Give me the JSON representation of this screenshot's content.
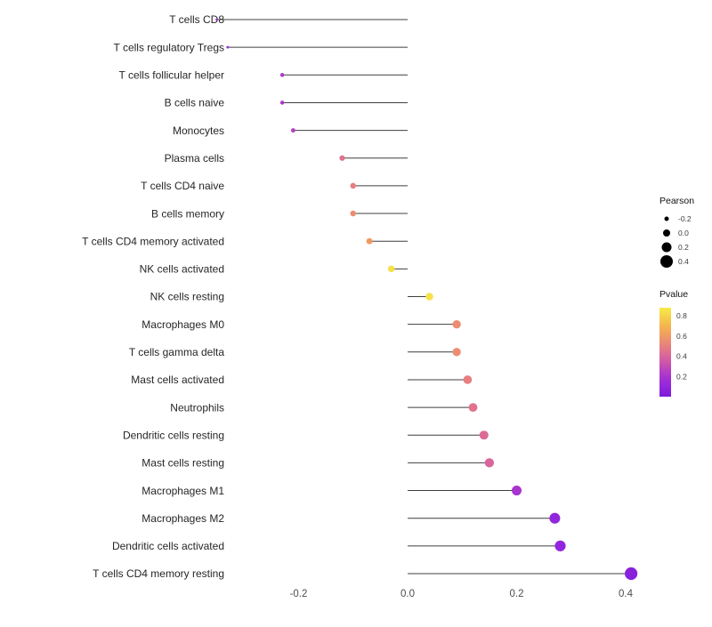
{
  "figure": {
    "background": "#ffffff"
  },
  "chart_data": {
    "type": "lollipop",
    "title": "",
    "xlabel": "",
    "ylabel": "",
    "grid": false,
    "legend_position": "right",
    "xlim": [
      -0.42,
      0.48
    ],
    "x_ticks": [
      -0.2,
      0.0,
      0.2,
      0.4
    ],
    "x_tick_labels": [
      "-0.2",
      "0.0",
      "0.2",
      "0.4"
    ],
    "points": [
      {
        "category": "T cells CD8",
        "pearson": -0.35,
        "pvalue": 0.15
      },
      {
        "category": "T cells regulatory  Tregs",
        "pearson": -0.33,
        "pvalue": 0.18
      },
      {
        "category": "T cells follicular helper",
        "pearson": -0.23,
        "pvalue": 0.22
      },
      {
        "category": "B cells naive",
        "pearson": -0.23,
        "pvalue": 0.22
      },
      {
        "category": "Monocytes",
        "pearson": -0.21,
        "pvalue": 0.25
      },
      {
        "category": "Plasma cells",
        "pearson": -0.12,
        "pvalue": 0.45
      },
      {
        "category": "T cells CD4 naive",
        "pearson": -0.1,
        "pvalue": 0.5
      },
      {
        "category": "B cells memory",
        "pearson": -0.1,
        "pvalue": 0.55
      },
      {
        "category": "T cells CD4 memory activated",
        "pearson": -0.07,
        "pvalue": 0.6
      },
      {
        "category": "NK cells activated",
        "pearson": -0.03,
        "pvalue": 0.85
      },
      {
        "category": "NK cells resting",
        "pearson": 0.04,
        "pvalue": 0.85
      },
      {
        "category": "Macrophages M0",
        "pearson": 0.09,
        "pvalue": 0.55
      },
      {
        "category": "T cells gamma delta",
        "pearson": 0.09,
        "pvalue": 0.55
      },
      {
        "category": "Mast cells activated",
        "pearson": 0.11,
        "pvalue": 0.5
      },
      {
        "category": "Neutrophils",
        "pearson": 0.12,
        "pvalue": 0.45
      },
      {
        "category": "Dendritic cells resting",
        "pearson": 0.14,
        "pvalue": 0.42
      },
      {
        "category": "Mast cells resting",
        "pearson": 0.15,
        "pvalue": 0.4
      },
      {
        "category": "Macrophages M1",
        "pearson": 0.2,
        "pvalue": 0.2
      },
      {
        "category": "Macrophages M2",
        "pearson": 0.27,
        "pvalue": 0.1
      },
      {
        "category": "Dendritic cells activated",
        "pearson": 0.28,
        "pvalue": 0.1
      },
      {
        "category": "T cells CD4 memory resting",
        "pearson": 0.41,
        "pvalue": 0.05
      }
    ],
    "size_legend": {
      "title": "Pearson",
      "tick_values": [
        -0.2,
        0.0,
        0.2,
        0.4
      ],
      "tick_labels": [
        "-0.2",
        "0.0",
        "0.2",
        "0.4"
      ]
    },
    "color_legend": {
      "title": "Pvalue",
      "tick_values": [
        0.8,
        0.6,
        0.4,
        0.2
      ],
      "tick_labels": [
        "0.8",
        "0.6",
        "0.4",
        "0.2"
      ],
      "domain": [
        0.0,
        0.88
      ]
    },
    "color_scale": {
      "stops": [
        {
          "t": 0.0,
          "color": "#7C1BD8"
        },
        {
          "t": 0.1,
          "color": "#9226DD"
        },
        {
          "t": 0.2,
          "color": "#A933CF"
        },
        {
          "t": 0.3,
          "color": "#C44BB5"
        },
        {
          "t": 0.4,
          "color": "#D9659B"
        },
        {
          "t": 0.5,
          "color": "#E77F80"
        },
        {
          "t": 0.6,
          "color": "#EF9A63"
        },
        {
          "t": 0.7,
          "color": "#F4B54F"
        },
        {
          "t": 0.8,
          "color": "#F5D348"
        },
        {
          "t": 0.9,
          "color": "#F7F04B"
        }
      ]
    },
    "style": {
      "stem_color": "#3f3f3f",
      "category_label_color": "#262626",
      "axis_label_color": "#4d4d4d",
      "legend_title_color": "#111111",
      "legend_label_color": "#3c3c3c",
      "legend_dot_color": "#000000"
    }
  }
}
